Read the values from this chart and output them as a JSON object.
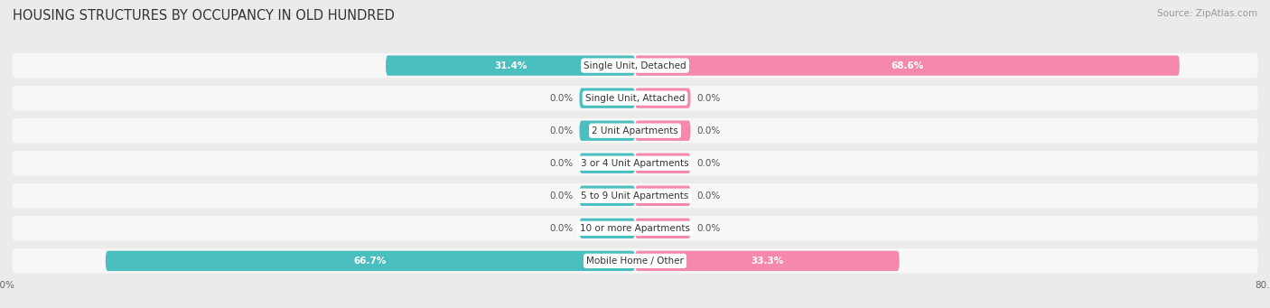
{
  "title": "HOUSING STRUCTURES BY OCCUPANCY IN OLD HUNDRED",
  "source": "Source: ZipAtlas.com",
  "categories": [
    "Single Unit, Detached",
    "Single Unit, Attached",
    "2 Unit Apartments",
    "3 or 4 Unit Apartments",
    "5 to 9 Unit Apartments",
    "10 or more Apartments",
    "Mobile Home / Other"
  ],
  "owner_values": [
    31.4,
    0.0,
    0.0,
    0.0,
    0.0,
    0.0,
    66.7
  ],
  "renter_values": [
    68.6,
    0.0,
    0.0,
    0.0,
    0.0,
    0.0,
    33.3
  ],
  "owner_color": "#4BBFBF",
  "renter_color": "#F589AC",
  "background_color": "#ebebeb",
  "row_bg_color": "#f7f7f7",
  "axis_min": -80.0,
  "axis_max": 80.0,
  "stub": 7.0,
  "title_fontsize": 10.5,
  "source_fontsize": 7.5,
  "cat_label_fontsize": 7.5,
  "val_label_fontsize": 7.5,
  "legend_fontsize": 8,
  "axis_label_fontsize": 7.5
}
